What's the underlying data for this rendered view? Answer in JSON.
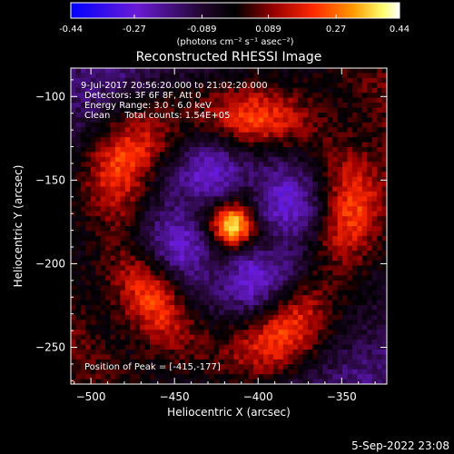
{
  "chart_data": {
    "type": "heatmap",
    "title": "Reconstructed RHESSI Image",
    "xlabel": "Heliocentric X (arcsec)",
    "ylabel": "Heliocentric Y (arcsec)",
    "xlim": [
      -512,
      -323
    ],
    "ylim": [
      -272,
      -83
    ],
    "x_ticks": [
      -500,
      -450,
      -400,
      -350
    ],
    "y_ticks": [
      -100,
      -150,
      -200,
      -250
    ],
    "grid": false,
    "colorbar": {
      "range": [
        -0.44,
        0.44
      ],
      "ticks": [
        -0.44,
        -0.27,
        -0.089,
        0.089,
        0.27,
        0.44
      ],
      "tick_labels": [
        "-0.44",
        "-0.27",
        "-0.089",
        "0.089",
        "0.27",
        "0.44"
      ],
      "units": "(photons cm⁻² s⁻¹ asec⁻²)",
      "colormap": [
        "#0000ff",
        "#8a2be2",
        "#3a0a4a",
        "#000000",
        "#8b0000",
        "#ff2200",
        "#ff8800",
        "#ffff88",
        "#ffffff"
      ]
    },
    "annotations": [
      "9-Jul-2017 20:56:20.000 to 21:02:20.000",
      "Detectors: 3F 6F 8F, Att 0",
      "Energy Range: 3.0 - 6.0 keV",
      "Clean     Total counts: 1.54E+05"
    ],
    "peak_label": "Position of Peak = [-415,-177]",
    "peak": {
      "x": -415,
      "y": -177,
      "value": 0.44
    },
    "ring": {
      "center_x": -415,
      "center_y": -177,
      "radius": 70,
      "value": 0.25
    },
    "trough": {
      "value": -0.2
    }
  },
  "footer_date": "5-Sep-2022 23:08"
}
